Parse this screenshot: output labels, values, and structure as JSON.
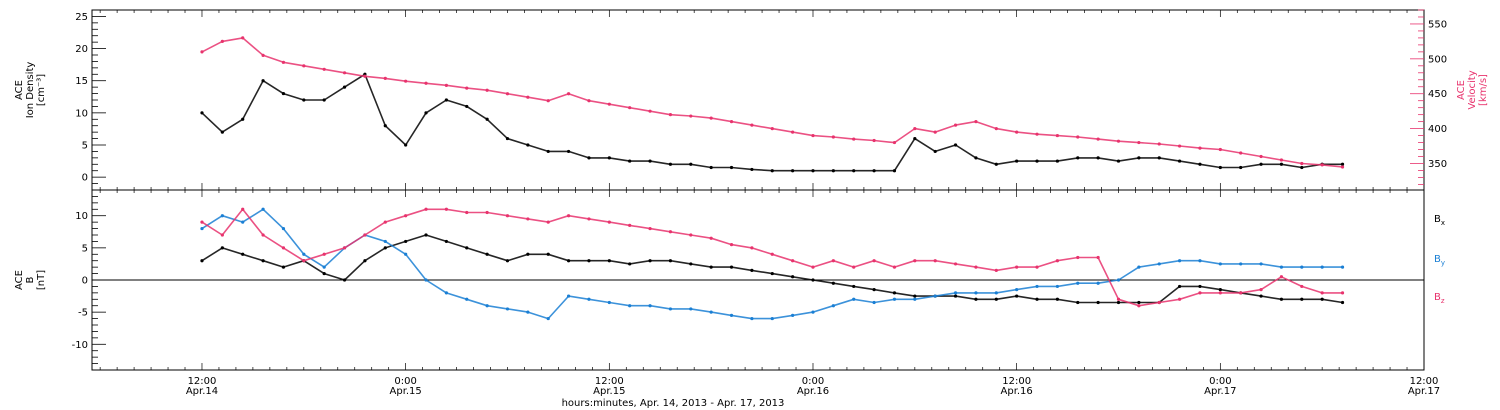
{
  "chart_data": [
    {
      "type": "scatter",
      "panel": "plasma",
      "ylabel": [
        "ACE",
        "Ion Density",
        "[cm⁻³]"
      ],
      "ylim": [
        -2,
        26
      ],
      "yticks": [
        0,
        5,
        10,
        15,
        20,
        25
      ],
      "y2label": [
        "ACE",
        "Velocity",
        "[km/s]"
      ],
      "y2lim": [
        312,
        570
      ],
      "y2ticks": [
        350,
        400,
        450,
        500,
        550
      ],
      "y2_color": "#e8336d",
      "series": [
        {
          "axis": "left",
          "color": "#000000",
          "x": [
            0,
            0.05,
            0.1,
            0.15,
            0.2,
            0.25,
            0.3,
            0.35,
            0.4,
            0.45,
            0.5,
            0.55,
            0.6,
            0.65,
            0.7,
            0.75,
            0.8,
            0.85,
            0.9,
            0.95,
            1.0,
            1.05,
            1.1,
            1.15,
            1.2,
            1.25,
            1.3,
            1.35,
            1.4,
            1.45,
            1.5,
            1.55,
            1.6,
            1.65,
            1.7,
            1.75,
            1.8,
            1.85,
            1.9,
            1.95,
            2.0,
            2.05,
            2.1,
            2.15,
            2.2,
            2.25,
            2.3,
            2.35,
            2.4,
            2.45,
            2.5,
            2.55,
            2.6,
            2.65,
            2.7,
            2.75,
            2.8
          ],
          "y": [
            10,
            7,
            9,
            15,
            13,
            12,
            12,
            14,
            16,
            8,
            5,
            10,
            12,
            11,
            9,
            6,
            5,
            4,
            4,
            3,
            3,
            2.5,
            2.5,
            2,
            2,
            1.5,
            1.5,
            1.2,
            1,
            1,
            1,
            1,
            1,
            1,
            1,
            6,
            4,
            5,
            3,
            2,
            2.5,
            2.5,
            2.5,
            3,
            3,
            2.5,
            3,
            3,
            2.5,
            2,
            1.5,
            1.5,
            2,
            2,
            1.5,
            2,
            2
          ]
        },
        {
          "axis": "right",
          "color": "#e8336d",
          "x": [
            0,
            0.05,
            0.1,
            0.15,
            0.2,
            0.25,
            0.3,
            0.35,
            0.4,
            0.45,
            0.5,
            0.55,
            0.6,
            0.65,
            0.7,
            0.75,
            0.8,
            0.85,
            0.9,
            0.95,
            1.0,
            1.05,
            1.1,
            1.15,
            1.2,
            1.25,
            1.3,
            1.35,
            1.4,
            1.45,
            1.5,
            1.55,
            1.6,
            1.65,
            1.7,
            1.75,
            1.8,
            1.85,
            1.9,
            1.95,
            2.0,
            2.05,
            2.1,
            2.15,
            2.2,
            2.25,
            2.3,
            2.35,
            2.4,
            2.45,
            2.5,
            2.55,
            2.6,
            2.65,
            2.7,
            2.75,
            2.8
          ],
          "y": [
            510,
            525,
            530,
            505,
            495,
            490,
            485,
            480,
            475,
            472,
            468,
            465,
            462,
            458,
            455,
            450,
            445,
            440,
            450,
            440,
            435,
            430,
            425,
            420,
            418,
            415,
            410,
            405,
            400,
            395,
            390,
            388,
            385,
            383,
            380,
            400,
            395,
            405,
            410,
            400,
            395,
            392,
            390,
            388,
            385,
            382,
            380,
            378,
            375,
            372,
            370,
            365,
            360,
            355,
            350,
            348,
            345
          ]
        }
      ]
    },
    {
      "type": "scatter",
      "panel": "magnetic field",
      "ylabel": [
        "ACE",
        "B",
        "[nT]"
      ],
      "ylim": [
        -14,
        14
      ],
      "yticks": [
        -10,
        -5,
        0,
        5,
        10
      ],
      "legend": [
        {
          "label": "B",
          "sub": "x",
          "color": "#000000"
        },
        {
          "label": "B",
          "sub": "y",
          "color": "#1a7fd4"
        },
        {
          "label": "B",
          "sub": "z",
          "color": "#e8336d"
        }
      ],
      "series": [
        {
          "color": "#000000",
          "x": [
            0,
            0.05,
            0.1,
            0.15,
            0.2,
            0.25,
            0.3,
            0.35,
            0.4,
            0.45,
            0.5,
            0.55,
            0.6,
            0.65,
            0.7,
            0.75,
            0.8,
            0.85,
            0.9,
            0.95,
            1.0,
            1.05,
            1.1,
            1.15,
            1.2,
            1.25,
            1.3,
            1.35,
            1.4,
            1.45,
            1.5,
            1.55,
            1.6,
            1.65,
            1.7,
            1.75,
            1.8,
            1.85,
            1.9,
            1.95,
            2.0,
            2.05,
            2.1,
            2.15,
            2.2,
            2.25,
            2.3,
            2.35,
            2.4,
            2.45,
            2.5,
            2.55,
            2.6,
            2.65,
            2.7,
            2.75,
            2.8
          ],
          "y": [
            3,
            5,
            4,
            3,
            2,
            3,
            1,
            0,
            3,
            5,
            6,
            7,
            6,
            5,
            4,
            3,
            4,
            4,
            3,
            3,
            3,
            2.5,
            3,
            3,
            2.5,
            2,
            2,
            1.5,
            1,
            0.5,
            0,
            -0.5,
            -1,
            -1.5,
            -2,
            -2.5,
            -2.5,
            -2.5,
            -3,
            -3,
            -2.5,
            -3,
            -3,
            -3.5,
            -3.5,
            -3.5,
            -3.5,
            -3.5,
            -1,
            -1,
            -1.5,
            -2,
            -2.5,
            -3,
            -3,
            -3,
            -3.5
          ]
        },
        {
          "color": "#1a7fd4",
          "x": [
            0,
            0.05,
            0.1,
            0.15,
            0.2,
            0.25,
            0.3,
            0.35,
            0.4,
            0.45,
            0.5,
            0.55,
            0.6,
            0.65,
            0.7,
            0.75,
            0.8,
            0.85,
            0.9,
            0.95,
            1.0,
            1.05,
            1.1,
            1.15,
            1.2,
            1.25,
            1.3,
            1.35,
            1.4,
            1.45,
            1.5,
            1.55,
            1.6,
            1.65,
            1.7,
            1.75,
            1.8,
            1.85,
            1.9,
            1.95,
            2.0,
            2.05,
            2.1,
            2.15,
            2.2,
            2.25,
            2.3,
            2.35,
            2.4,
            2.45,
            2.5,
            2.55,
            2.6,
            2.65,
            2.7,
            2.75,
            2.8
          ],
          "y": [
            8,
            10,
            9,
            11,
            8,
            4,
            2,
            5,
            7,
            6,
            4,
            0,
            -2,
            -3,
            -4,
            -4.5,
            -5,
            -6,
            -2.5,
            -3,
            -3.5,
            -4,
            -4,
            -4.5,
            -4.5,
            -5,
            -5.5,
            -6,
            -6,
            -5.5,
            -5,
            -4,
            -3,
            -3.5,
            -3,
            -3,
            -2.5,
            -2,
            -2,
            -2,
            -1.5,
            -1,
            -1,
            -0.5,
            -0.5,
            0,
            2,
            2.5,
            3,
            3,
            2.5,
            2.5,
            2.5,
            2,
            2,
            2,
            2
          ]
        },
        {
          "color": "#e8336d",
          "x": [
            0,
            0.05,
            0.1,
            0.15,
            0.2,
            0.25,
            0.3,
            0.35,
            0.4,
            0.45,
            0.5,
            0.55,
            0.6,
            0.65,
            0.7,
            0.75,
            0.8,
            0.85,
            0.9,
            0.95,
            1.0,
            1.05,
            1.1,
            1.15,
            1.2,
            1.25,
            1.3,
            1.35,
            1.4,
            1.45,
            1.5,
            1.55,
            1.6,
            1.65,
            1.7,
            1.75,
            1.8,
            1.85,
            1.9,
            1.95,
            2.0,
            2.05,
            2.1,
            2.15,
            2.2,
            2.25,
            2.3,
            2.35,
            2.4,
            2.45,
            2.5,
            2.55,
            2.6,
            2.65,
            2.7,
            2.75,
            2.8
          ],
          "y": [
            9,
            7,
            11,
            7,
            5,
            3,
            4,
            5,
            7,
            9,
            10,
            11,
            11,
            10.5,
            10.5,
            10,
            9.5,
            9,
            10,
            9.5,
            9,
            8.5,
            8,
            7.5,
            7,
            6.5,
            5.5,
            5,
            4,
            3,
            2,
            3,
            2,
            3,
            2,
            3,
            3,
            2.5,
            2,
            1.5,
            2,
            2,
            3,
            3.5,
            3.5,
            -3,
            -4,
            -3.5,
            -3,
            -2,
            -2,
            -2,
            -1.5,
            0.5,
            -1,
            -2,
            -2
          ]
        }
      ]
    }
  ],
  "x_axis": {
    "xlim": [
      -0.27,
      3.0
    ],
    "ticks": [
      {
        "x": 0.0,
        "time": "12:00",
        "date": "Apr.14"
      },
      {
        "x": 0.5,
        "time": "0:00",
        "date": "Apr.15"
      },
      {
        "x": 1.0,
        "time": "12:00",
        "date": "Apr.15"
      },
      {
        "x": 1.5,
        "time": "0:00",
        "date": "Apr.16"
      },
      {
        "x": 2.0,
        "time": "12:00",
        "date": "Apr.16"
      },
      {
        "x": 2.5,
        "time": "0:00",
        "date": "Apr.17"
      },
      {
        "x": 3.0,
        "time": "12:00",
        "date": "Apr.17"
      }
    ],
    "title": "hours:minutes, Apr. 14, 2013 - Apr. 17, 2013"
  }
}
